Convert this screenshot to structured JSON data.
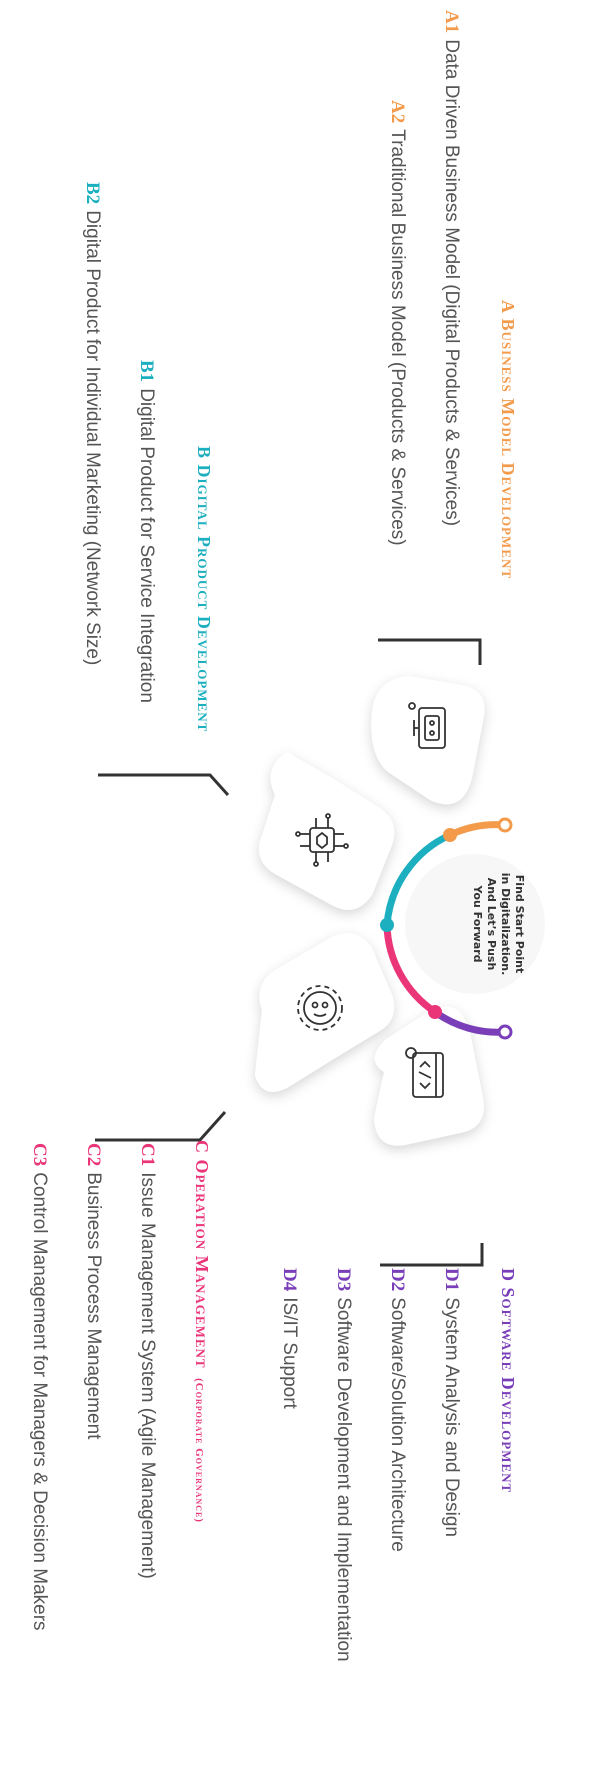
{
  "center": {
    "lines": [
      "Find Start Point",
      "in Digitalization.",
      "And Let’s Push",
      "You Forward"
    ]
  },
  "sections": {
    "a": {
      "code": "A",
      "title": "Business Model Development",
      "items": [
        {
          "code": "A1",
          "text": "Data Driven Business Model (Digital Products & Services)"
        },
        {
          "code": "A2",
          "text": "Traditional Business Model (Products & Services)"
        }
      ]
    },
    "b": {
      "code": "B",
      "title": "Digital Product Development",
      "items": [
        {
          "code": "B1",
          "text": "Digital Product for Service Integration"
        },
        {
          "code": "B2",
          "text": "Digital Product for Individual Marketing (Network Size)"
        }
      ]
    },
    "c": {
      "code": "C",
      "title": "Operation Management",
      "subtitle": "(Corporate Governance)",
      "items": [
        {
          "code": "C1",
          "text": "Issue Management System (Agile Management)"
        },
        {
          "code": "C2",
          "text": "Business Process Management"
        },
        {
          "code": "C3",
          "text": "Control Management for Managers & Decision Makers"
        }
      ]
    },
    "d": {
      "code": "D",
      "title": "Software Development",
      "items": [
        {
          "code": "D1",
          "text": "System Analysis and Design"
        },
        {
          "code": "D2",
          "text": "Software/Solution Architecture"
        },
        {
          "code": "D3",
          "text": "Software Development and Implementation"
        },
        {
          "code": "D4",
          "text": "IS/IT Support"
        }
      ]
    }
  },
  "icons": [
    "robot-monitor-icon",
    "circuit-chip-icon",
    "robot-gear-icon",
    "code-screen-gear-icon"
  ],
  "colors": {
    "a": "#F39A4B",
    "b": "#1CAFC0",
    "c": "#EA3579",
    "d": "#7A3FB8",
    "text": "#555555",
    "line": "#333333"
  }
}
